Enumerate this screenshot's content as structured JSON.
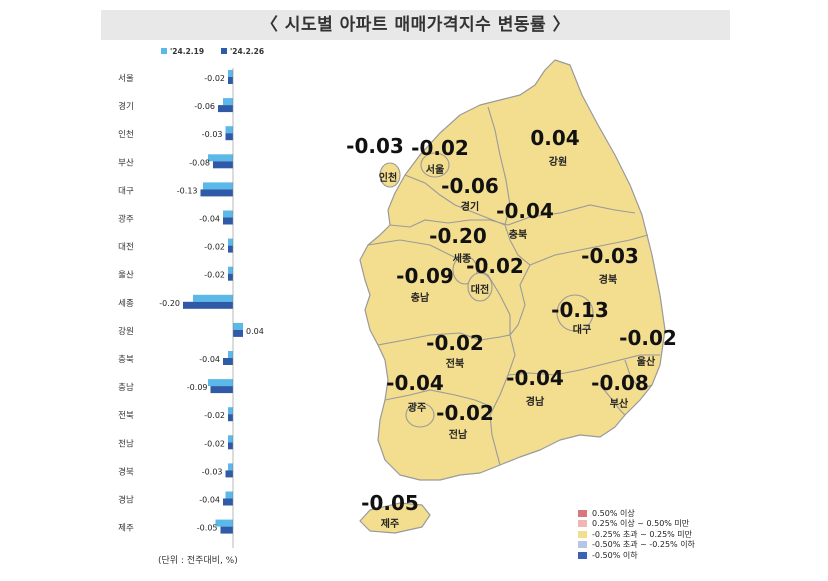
{
  "title": "〈 시도별 아파트 매매가격지수 변동률 〉",
  "unit_note": "(단위 : 전주대비, %)",
  "colors": {
    "prev": "#5bb9ea",
    "curr": "#2f5aa8",
    "map_fill": "#f3dd8f",
    "map_stroke": "#9a9a9a"
  },
  "chart_data": {
    "type": "bar",
    "orientation": "horizontal",
    "title": "〈 시도별 아파트 매매가격지수 변동률 〉",
    "categories": [
      "서울",
      "경기",
      "인천",
      "부산",
      "대구",
      "광주",
      "대전",
      "울산",
      "세종",
      "강원",
      "충북",
      "충남",
      "전북",
      "전남",
      "경북",
      "경남",
      "제주"
    ],
    "series": [
      {
        "name": "'24.2.19",
        "color": "#5bb9ea",
        "values": [
          -0.02,
          -0.04,
          -0.03,
          -0.1,
          -0.12,
          -0.04,
          -0.02,
          -0.02,
          -0.16,
          0.04,
          -0.02,
          -0.1,
          -0.02,
          -0.02,
          -0.02,
          -0.03,
          -0.07
        ]
      },
      {
        "name": "'24.2.26",
        "color": "#2f5aa8",
        "values": [
          -0.02,
          -0.06,
          -0.03,
          -0.08,
          -0.13,
          -0.04,
          -0.02,
          -0.02,
          -0.2,
          0.04,
          -0.04,
          -0.09,
          -0.02,
          -0.02,
          -0.03,
          -0.04,
          -0.05
        ]
      }
    ],
    "value_labels": [
      "-0.02",
      "-0.06",
      "-0.03",
      "-0.08",
      "-0.13",
      "-0.04",
      "-0.02",
      "-0.02",
      "-0.20",
      "0.04",
      "-0.04",
      "-0.09",
      "-0.02",
      "-0.02",
      "-0.03",
      "-0.04",
      "-0.05"
    ],
    "legend_placement": "top",
    "grid": false
  },
  "map": {
    "regions": [
      {
        "name": "서울",
        "value": "-0.02"
      },
      {
        "name": "인천",
        "value": "-0.03"
      },
      {
        "name": "경기",
        "value": "-0.06"
      },
      {
        "name": "강원",
        "value": "0.04"
      },
      {
        "name": "충북",
        "value": "-0.04"
      },
      {
        "name": "세종",
        "value": "-0.20"
      },
      {
        "name": "대전",
        "value": "-0.02"
      },
      {
        "name": "충남",
        "value": "-0.09"
      },
      {
        "name": "경북",
        "value": "-0.03"
      },
      {
        "name": "대구",
        "value": "-0.13"
      },
      {
        "name": "울산",
        "value": "-0.02"
      },
      {
        "name": "전북",
        "value": "-0.02"
      },
      {
        "name": "광주",
        "value": "-0.04"
      },
      {
        "name": "전남",
        "value": "-0.02"
      },
      {
        "name": "경남",
        "value": "-0.04"
      },
      {
        "name": "부산",
        "value": "-0.08"
      },
      {
        "name": "제주",
        "value": "-0.05"
      }
    ],
    "legend": [
      {
        "label": "0.50% 이상",
        "color": "#d9777c"
      },
      {
        "label": "0.25% 이상 ~ 0.50% 미만",
        "color": "#f1b5b5"
      },
      {
        "label": "-0.25% 초과 ~ 0.25% 미만",
        "color": "#f3dd8f"
      },
      {
        "label": "-0.50% 초과 ~ -0.25% 이하",
        "color": "#b8c6e6"
      },
      {
        "label": "-0.50% 이하",
        "color": "#3a63b6"
      }
    ]
  }
}
